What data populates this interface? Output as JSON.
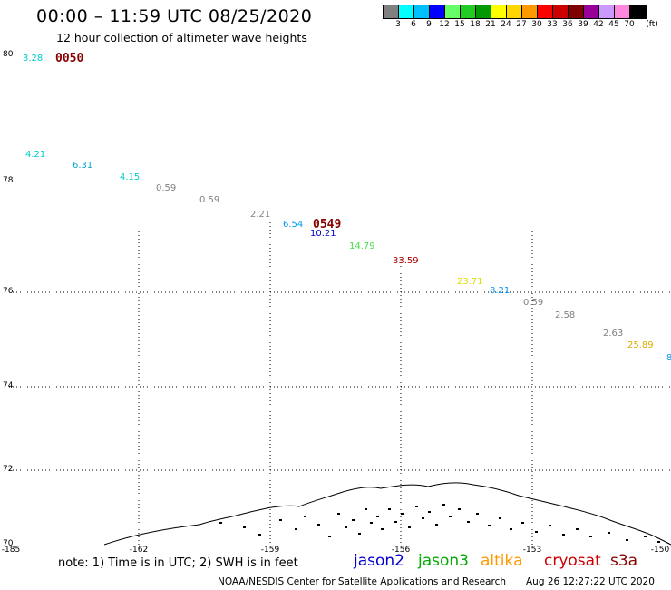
{
  "header": {
    "title": "00:00 – 11:59 UTC 08/25/2020",
    "subtitle": "12 hour collection of altimeter wave heights"
  },
  "legend": {
    "colors": [
      "#808080",
      "#00ffff",
      "#00bfff",
      "#0000ff",
      "#66ff66",
      "#22cc22",
      "#009900",
      "#ffff00",
      "#ffd700",
      "#ff9900",
      "#ff0000",
      "#cc0000",
      "#800000",
      "#990099",
      "#cc99ff",
      "#ff88dd",
      "#000000"
    ],
    "labels": [
      "3",
      "6",
      "9",
      "12",
      "15",
      "18",
      "21",
      "24",
      "27",
      "30",
      "33",
      "36",
      "39",
      "42",
      "45",
      "70"
    ],
    "unit": "(ft)"
  },
  "axes": {
    "y_labels": [
      "80",
      "78",
      "76",
      "74",
      "72",
      "70"
    ],
    "x_labels": [
      "-185",
      "-162",
      "-159",
      "-156",
      "-153",
      "-150"
    ]
  },
  "wave_readings": [
    {
      "value": "3.28",
      "color": "#00cccc"
    },
    {
      "value": "4.21",
      "color": "#00cccc"
    },
    {
      "value": "6.31",
      "color": "#00aacc"
    },
    {
      "value": "4.15",
      "color": "#00cccc"
    },
    {
      "value": "0.59",
      "color": "#808080"
    },
    {
      "value": "0.59",
      "color": "#808080"
    },
    {
      "value": "2.21",
      "color": "#808080"
    },
    {
      "value": "6.54",
      "color": "#0099ee"
    },
    {
      "value": "10.21",
      "color": "#0000cc"
    },
    {
      "value": "14.79",
      "color": "#44dd44"
    },
    {
      "value": "33.59",
      "color": "#aa0000"
    },
    {
      "value": "23.71",
      "color": "#dddd00"
    },
    {
      "value": "8.21",
      "color": "#0099ee"
    },
    {
      "value": "0.59",
      "color": "#808080"
    },
    {
      "value": "2.58",
      "color": "#808080"
    },
    {
      "value": "2.63",
      "color": "#808080"
    },
    {
      "value": "25.89",
      "color": "#ddaa00"
    },
    {
      "value": "8",
      "color": "#0099ee"
    }
  ],
  "time_labels": [
    {
      "value": "0050",
      "color": "#880000"
    },
    {
      "value": "0549",
      "color": "#880000"
    }
  ],
  "footer": {
    "note": "note:  1) Time is in UTC;  2) SWH is in feet",
    "satellites": [
      {
        "name": "jason2",
        "color": "#0000cc"
      },
      {
        "name": "jason3",
        "color": "#00aa00"
      },
      {
        "name": "altika",
        "color": "#ff9900"
      },
      {
        "name": "cryosat",
        "color": "#cc0000"
      },
      {
        "name": "s3a",
        "color": "#880000"
      }
    ],
    "credit": "NOAA/NESDIS Center for Satellite Applications and Research",
    "timestamp": "Aug 26 12:27:22 UTC 2020"
  }
}
